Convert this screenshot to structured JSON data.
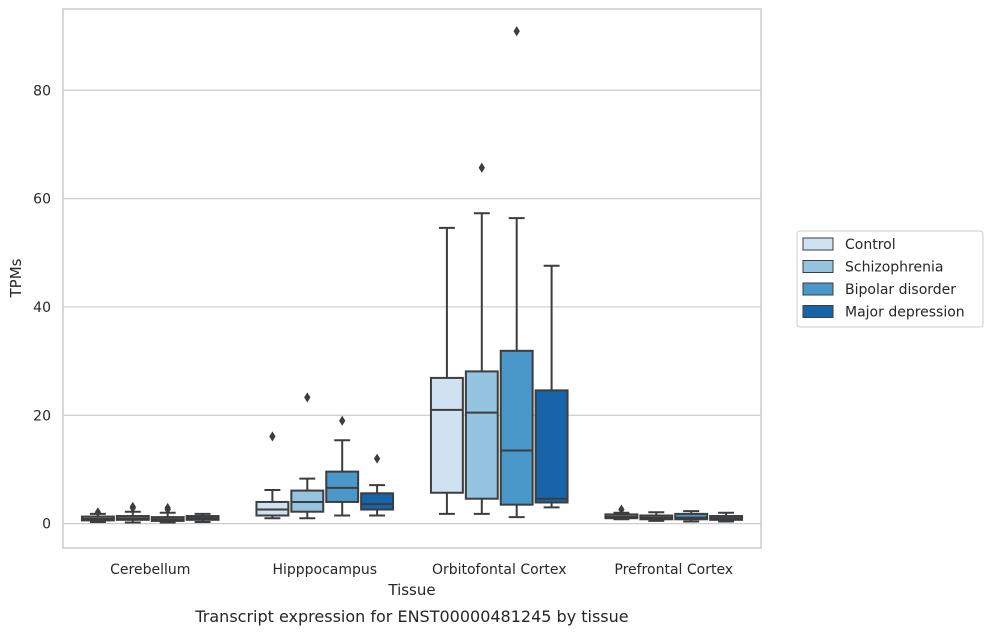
{
  "chart_data": {
    "type": "box",
    "xlabel": "Tissue",
    "ylabel": "TPMs",
    "caption": "Transcript expression for ENST00000481245 by tissue",
    "ylim": [
      -4.5,
      95
    ],
    "yticks": [
      0,
      20,
      40,
      60,
      80
    ],
    "grid": true,
    "legend_position": "center-right",
    "categories": [
      "Cerebellum",
      "Hipppocampus",
      "Orbitofontal Cortex",
      "Prefrontal Cortex"
    ],
    "series": [
      {
        "name": "Control",
        "color": "#d0e1f2",
        "boxes": [
          {
            "min": 0.3,
            "q1": 0.6,
            "median": 0.9,
            "q3": 1.3,
            "max": 1.8,
            "outliers": [
              2.1
            ]
          },
          {
            "min": 1.0,
            "q1": 1.5,
            "median": 2.6,
            "q3": 4.0,
            "max": 6.2,
            "outliers": [
              16.1
            ]
          },
          {
            "min": 1.8,
            "q1": 5.7,
            "median": 21.0,
            "q3": 26.9,
            "max": 54.6,
            "outliers": []
          },
          {
            "min": 0.8,
            "q1": 1.0,
            "median": 1.3,
            "q3": 1.7,
            "max": 2.0,
            "outliers": [
              2.6
            ]
          }
        ]
      },
      {
        "name": "Schizophrenia",
        "color": "#94c4df",
        "boxes": [
          {
            "min": 0.2,
            "q1": 0.7,
            "median": 1.0,
            "q3": 1.4,
            "max": 2.2,
            "outliers": [
              2.9,
              3.1
            ]
          },
          {
            "min": 1.0,
            "q1": 2.2,
            "median": 4.0,
            "q3": 6.1,
            "max": 8.3,
            "outliers": [
              23.3
            ]
          },
          {
            "min": 1.8,
            "q1": 4.6,
            "median": 20.5,
            "q3": 28.1,
            "max": 57.3,
            "outliers": [
              65.7
            ]
          },
          {
            "min": 0.5,
            "q1": 0.8,
            "median": 1.1,
            "q3": 1.5,
            "max": 2.1,
            "outliers": []
          }
        ]
      },
      {
        "name": "Bipolar disorder",
        "color": "#4a98c9",
        "boxes": [
          {
            "min": 0.2,
            "q1": 0.5,
            "median": 0.8,
            "q3": 1.2,
            "max": 2.0,
            "outliers": [
              2.6,
              2.9
            ]
          },
          {
            "min": 1.5,
            "q1": 4.0,
            "median": 6.6,
            "q3": 9.6,
            "max": 15.4,
            "outliers": [
              19.0
            ]
          },
          {
            "min": 1.2,
            "q1": 3.5,
            "median": 13.5,
            "q3": 31.9,
            "max": 56.4,
            "outliers": [
              90.9
            ]
          },
          {
            "min": 0.4,
            "q1": 0.8,
            "median": 1.1,
            "q3": 1.8,
            "max": 2.3,
            "outliers": []
          }
        ]
      },
      {
        "name": "Major depression",
        "color": "#1764ab",
        "boxes": [
          {
            "min": 0.3,
            "q1": 0.7,
            "median": 1.0,
            "q3": 1.4,
            "max": 1.8,
            "outliers": []
          },
          {
            "min": 1.5,
            "q1": 2.6,
            "median": 3.6,
            "q3": 5.6,
            "max": 7.1,
            "outliers": [
              12.0
            ]
          },
          {
            "min": 3.0,
            "q1": 3.9,
            "median": 4.6,
            "q3": 24.6,
            "max": 47.6,
            "outliers": []
          },
          {
            "min": 0.4,
            "q1": 0.7,
            "median": 1.0,
            "q3": 1.4,
            "max": 2.0,
            "outliers": []
          }
        ]
      }
    ]
  }
}
